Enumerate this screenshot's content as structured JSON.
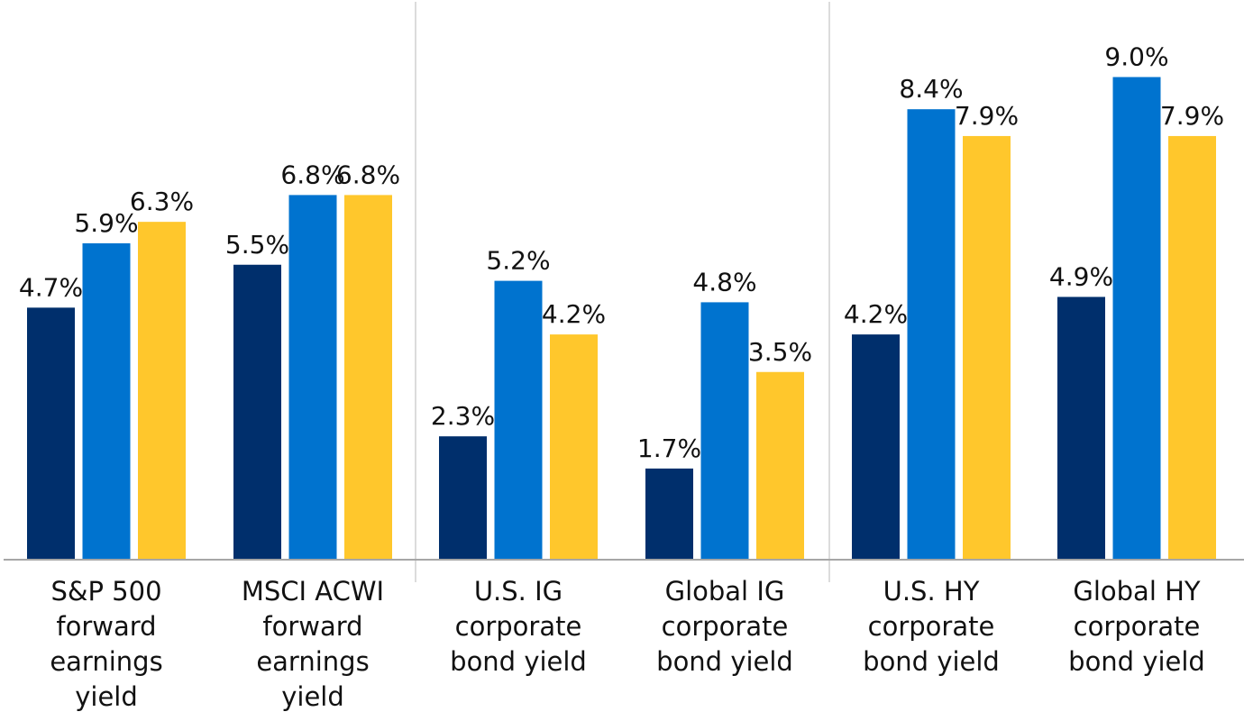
{
  "chart_data": {
    "type": "bar",
    "title": "",
    "xlabel": "",
    "ylabel": "",
    "ylim": [
      0,
      10
    ],
    "grid": false,
    "legend": "none",
    "categories": [
      [
        "S&P 500",
        "forward",
        "earnings",
        "yield"
      ],
      [
        "MSCI ACWI",
        "forward",
        "earnings",
        "yield"
      ],
      [
        "U.S. IG",
        "corporate",
        "bond yield"
      ],
      [
        "Global IG",
        "corporate",
        "bond yield"
      ],
      [
        "U.S. HY",
        "corporate",
        "bond yield"
      ],
      [
        "Global HY",
        "corporate",
        "bond yield"
      ]
    ],
    "series": [
      {
        "name": "Series 1",
        "color": "#002f6c",
        "values": [
          4.7,
          5.5,
          2.3,
          1.7,
          4.2,
          4.9
        ]
      },
      {
        "name": "Series 2",
        "color": "#0073cf",
        "values": [
          5.9,
          6.8,
          5.2,
          4.8,
          8.4,
          9.0
        ]
      },
      {
        "name": "Series 3",
        "color": "#ffc72c",
        "values": [
          6.3,
          6.8,
          4.2,
          3.5,
          7.9,
          7.9
        ]
      }
    ],
    "value_labels": [
      [
        "4.7%",
        "5.5%",
        "2.3%",
        "1.7%",
        "4.2%",
        "4.9%"
      ],
      [
        "5.9%",
        "6.8%",
        "5.2%",
        "4.8%",
        "8.4%",
        "9.0%"
      ],
      [
        "6.3%",
        "6.8%",
        "4.2%",
        "3.5%",
        "7.9%",
        "7.9%"
      ]
    ]
  },
  "colors": {
    "axis": "#a6a6a6",
    "divider": "#d0d0d0"
  }
}
